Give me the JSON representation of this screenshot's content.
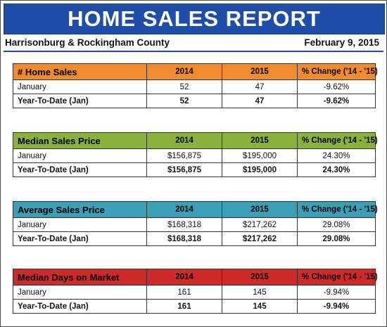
{
  "report": {
    "title": "HOME SALES REPORT",
    "region": "Harrisonburg & Rockingham County",
    "date": "February 9, 2015"
  },
  "columns": {
    "y1": "2014",
    "y2": "2015",
    "change": "% Change ('14 - '15)"
  },
  "tables": [
    {
      "metric": "# Home Sales",
      "color": "#f08c2e",
      "rows": [
        {
          "label": "January",
          "y1": "52",
          "y2": "47",
          "change": "-9.62%"
        },
        {
          "label": "Year-To-Date (Jan)",
          "y1": "52",
          "y2": "47",
          "change": "-9.62%"
        }
      ]
    },
    {
      "metric": "Median Sales Price",
      "color": "#8bb03c",
      "rows": [
        {
          "label": "January",
          "y1": "$156,875",
          "y2": "$195,000",
          "change": "24.30%"
        },
        {
          "label": "Year-To-Date (Jan)",
          "y1": "$156,875",
          "y2": "$195,000",
          "change": "24.30%"
        }
      ]
    },
    {
      "metric": "Average Sales Price",
      "color": "#3ba0b6",
      "rows": [
        {
          "label": "January",
          "y1": "$168,318",
          "y2": "$217,262",
          "change": "29.08%"
        },
        {
          "label": "Year-To-Date (Jan)",
          "y1": "$168,318",
          "y2": "$217,262",
          "change": "29.08%"
        }
      ]
    },
    {
      "metric": "Median Days on Market",
      "color": "#cf2a2a",
      "rows": [
        {
          "label": "January",
          "y1": "161",
          "y2": "145",
          "change": "-9.94%"
        },
        {
          "label": "Year-To-Date (Jan)",
          "y1": "161",
          "y2": "145",
          "change": "-9.94%"
        }
      ]
    }
  ]
}
